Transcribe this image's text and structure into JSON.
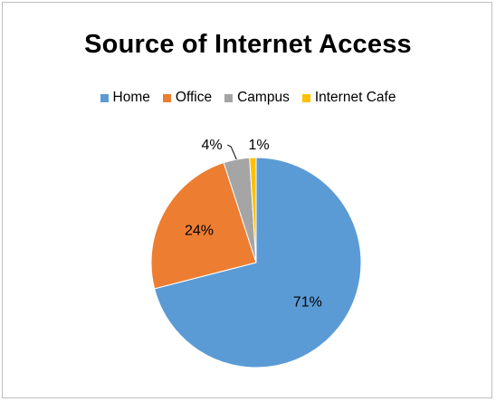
{
  "chart_data": {
    "type": "pie",
    "title": "Source of Internet Access",
    "legend_position": "top",
    "categories": [
      "Home",
      "Office",
      "Campus",
      "Internet Cafe"
    ],
    "values": [
      71,
      24,
      4,
      1
    ],
    "data_labels": [
      "71%",
      "24%",
      "4%",
      "1%"
    ],
    "colors": [
      "#5b9bd5",
      "#ed7d31",
      "#a5a5a5",
      "#ffc000"
    ]
  }
}
